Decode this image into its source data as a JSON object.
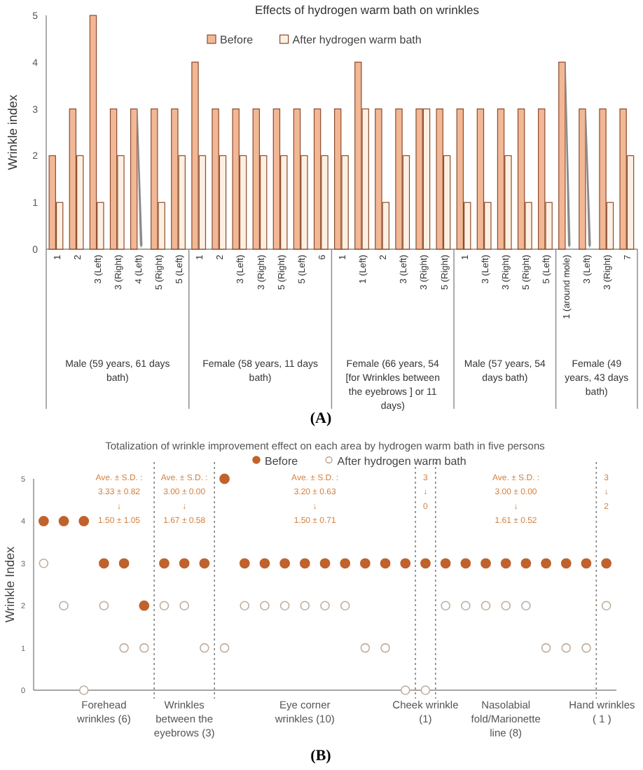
{
  "chart_data": [
    {
      "type": "bar",
      "title": "Effects of hydrogen warm bath on wrinkles",
      "ylabel": "Wrinkle index",
      "legend": "top",
      "categories": [
        "1",
        "2",
        "3 (Left)",
        "3 (Right)",
        "4 (Left)",
        "5 (Right)",
        "5 (Left)",
        "1",
        "2",
        "3 (Left)",
        "3 (Right)",
        "5 (Right)",
        "5 (Left)",
        "6",
        "1",
        "1 (Left)",
        "2",
        "3 (Left)",
        "3 (Right)",
        "5 (Right)",
        "1",
        "3 (Left)",
        "3 (Right)",
        "5 (Right)",
        "5 (Left)",
        "1 (around mole)",
        "3 (Left)",
        "3 (Right)",
        "7"
      ],
      "series": [
        {
          "name": "Before",
          "color": "#f2b896",
          "values": [
            2,
            3,
            5,
            3,
            3,
            3,
            3,
            4,
            3,
            3,
            3,
            3,
            3,
            3,
            3,
            4,
            3,
            3,
            3,
            3,
            3,
            3,
            3,
            3,
            3,
            4,
            3,
            3,
            3
          ]
        },
        {
          "name": "After hydrogen warm bath",
          "color": "#fdf0e2",
          "values": [
            1,
            2,
            1,
            2,
            0,
            1,
            2,
            2,
            2,
            2,
            2,
            2,
            2,
            2,
            2,
            3,
            1,
            2,
            3,
            2,
            1,
            1,
            2,
            1,
            1,
            0,
            0,
            1,
            2
          ]
        }
      ],
      "ylim": [
        0,
        5
      ],
      "yticks": [
        0,
        1,
        2,
        3,
        4,
        5
      ],
      "annotations": [
        "Male (59 years, 61 days bath)",
        "Female (58 years, 11 days bath)",
        "Female (66 years, 54 [for Wrinkles between the eyebrows ] or 11 days)",
        "Male (57 years, 54 days bath)",
        "Female (49 years, 43 days bath)",
        "(A)"
      ]
    },
    {
      "type": "scatter",
      "title": "Totalization of wrinkle improvement effect on each area by hydrogen warm bath in five persons",
      "ylabel": "Wrinkle Index",
      "legend": "top",
      "marker": "circle",
      "categories": [
        null,
        null,
        null,
        "Forehead wrinkles (6)",
        null,
        null,
        null,
        "Wrinkles between the eyebrows (3)",
        null,
        null,
        null,
        null,
        null,
        "Eye corner wrinkles (10)",
        null,
        null,
        null,
        null,
        null,
        "Cheek wrinkle (1)",
        null,
        null,
        null,
        "Nasolabial fold/Marionette line (8)",
        null,
        null,
        null,
        null,
        "Hand wrinkles ( 1 )"
      ],
      "series": [
        {
          "name": "Before",
          "color": "#c0622d",
          "values": [
            4,
            4,
            4,
            3,
            3,
            2,
            3,
            3,
            3,
            5,
            3,
            3,
            3,
            3,
            3,
            3,
            3,
            3,
            3,
            3,
            3,
            3,
            3,
            3,
            3,
            3,
            3,
            3,
            3
          ]
        },
        {
          "name": "After hydrogen warm bath",
          "color": "#bfae9e",
          "values": [
            3,
            2,
            0,
            2,
            1,
            1,
            2,
            2,
            1,
            1,
            2,
            2,
            2,
            2,
            2,
            2,
            1,
            1,
            0,
            0,
            2,
            2,
            2,
            2,
            2,
            1,
            1,
            1,
            2
          ]
        }
      ],
      "ylim": [
        0,
        5
      ],
      "yticks": [
        0,
        1,
        2,
        3,
        4,
        5
      ],
      "annotations": [
        "Ave. ± S.D. :\n3.33 ± 0.82\n↓\n1.50 ± 1.05",
        "Ave. ± S.D. :\n3.00 ± 0.00\n↓\n1.67 ± 0.58",
        "Ave. ± S.D. :\n3.20 ± 0.63\n↓\n1.50 ± 0.71",
        "3\n↓\n0",
        "Ave. ± S.D. :\n3.00 ± 0.00\n↓\n1.61 ± 0.52",
        "3\n↓\n2",
        "(B)"
      ]
    }
  ]
}
